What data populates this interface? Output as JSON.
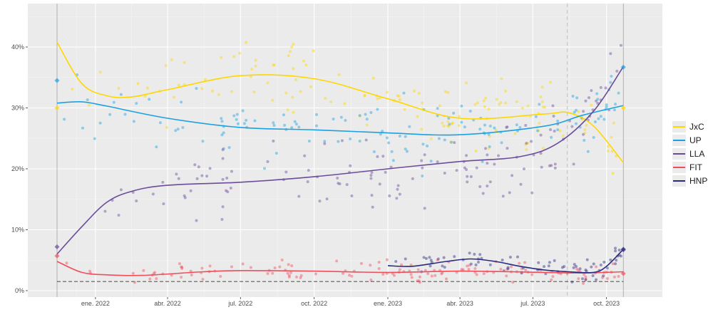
{
  "chart_data": {
    "type": "line",
    "title": "",
    "xlabel": "",
    "ylabel": "",
    "x_ticks": [
      "ene. 2022",
      "abr. 2022",
      "jul. 2022",
      "oct. 2022",
      "ene. 2023",
      "abr. 2023",
      "jul. 2023",
      "oct. 2023"
    ],
    "y_ticks": [
      "0%",
      "10%",
      "20%",
      "30%",
      "40%"
    ],
    "x_range": [
      "2021-11-14",
      "2023-11-05"
    ],
    "ylim": [
      -1,
      47
    ],
    "grid": true,
    "legend_position": "right",
    "reference_lines": {
      "horizontal_dashed_y": 1.5,
      "vertical_solid_dates": [
        "2021-11-14",
        "2023-10-22"
      ],
      "vertical_dashed_date": "2023-08-13"
    },
    "series": [
      {
        "name": "JxC",
        "color": "#ffd700",
        "x": [
          "2021-11-14",
          "2021-12-15",
          "2022-01-15",
          "2022-02-15",
          "2022-04-01",
          "2022-07-01",
          "2022-10-01",
          "2023-01-01",
          "2023-04-01",
          "2023-07-15",
          "2023-08-15",
          "2023-09-15",
          "2023-10-22"
        ],
        "y": [
          40.8,
          34.0,
          32.0,
          31.8,
          33.0,
          35.3,
          34.8,
          31.5,
          28.3,
          29.0,
          29.2,
          27.0,
          21.0
        ],
        "endpoint": [
          30,
          30
        ]
      },
      {
        "name": "UP",
        "color": "#1ba1e2",
        "x": [
          "2021-11-14",
          "2021-12-15",
          "2022-01-15",
          "2022-04-01",
          "2022-07-01",
          "2022-10-01",
          "2023-01-01",
          "2023-04-01",
          "2023-07-15",
          "2023-09-01",
          "2023-10-22"
        ],
        "y": [
          30.8,
          31.0,
          30.3,
          28.3,
          26.8,
          26.4,
          25.9,
          25.6,
          27.0,
          28.8,
          30.4
        ],
        "endpoint": [
          34.5,
          36.7
        ]
      },
      {
        "name": "LLA",
        "color": "#6b4c9a",
        "x": [
          "2021-11-14",
          "2021-12-15",
          "2022-01-15",
          "2022-02-15",
          "2022-04-01",
          "2022-07-01",
          "2022-10-01",
          "2023-01-01",
          "2023-04-01",
          "2023-06-15",
          "2023-08-01",
          "2023-09-15",
          "2023-10-22"
        ],
        "y": [
          6.0,
          10.5,
          14.5,
          16.3,
          17.3,
          17.8,
          18.7,
          20.0,
          21.2,
          22.0,
          24.2,
          29.5,
          36.8
        ],
        "endpoint": [
          7.2,
          6.7
        ]
      },
      {
        "name": "FIT",
        "color": "#ef4e5b",
        "x": [
          "2021-11-14",
          "2021-12-15",
          "2022-01-15",
          "2022-03-01",
          "2022-05-15",
          "2022-07-01",
          "2022-10-01",
          "2023-01-01",
          "2023-04-01",
          "2023-07-15",
          "2023-09-01",
          "2023-10-22"
        ],
        "y": [
          4.8,
          3.0,
          2.6,
          2.5,
          3.1,
          3.3,
          3.2,
          3.0,
          3.2,
          3.0,
          2.9,
          3.1
        ],
        "endpoint": [
          5.7,
          2.8
        ]
      },
      {
        "name": "HNP",
        "color": "#2a2a80",
        "x": [
          "2023-01-01",
          "2023-02-01",
          "2023-03-15",
          "2023-04-15",
          "2023-05-15",
          "2023-06-15",
          "2023-07-15",
          "2023-08-15",
          "2023-09-15",
          "2023-10-01",
          "2023-10-22"
        ],
        "y": [
          4.1,
          4.0,
          4.8,
          5.2,
          4.8,
          4.0,
          3.4,
          3.1,
          3.0,
          4.0,
          6.8
        ],
        "endpoint": [
          null,
          6.8
        ]
      }
    ]
  }
}
